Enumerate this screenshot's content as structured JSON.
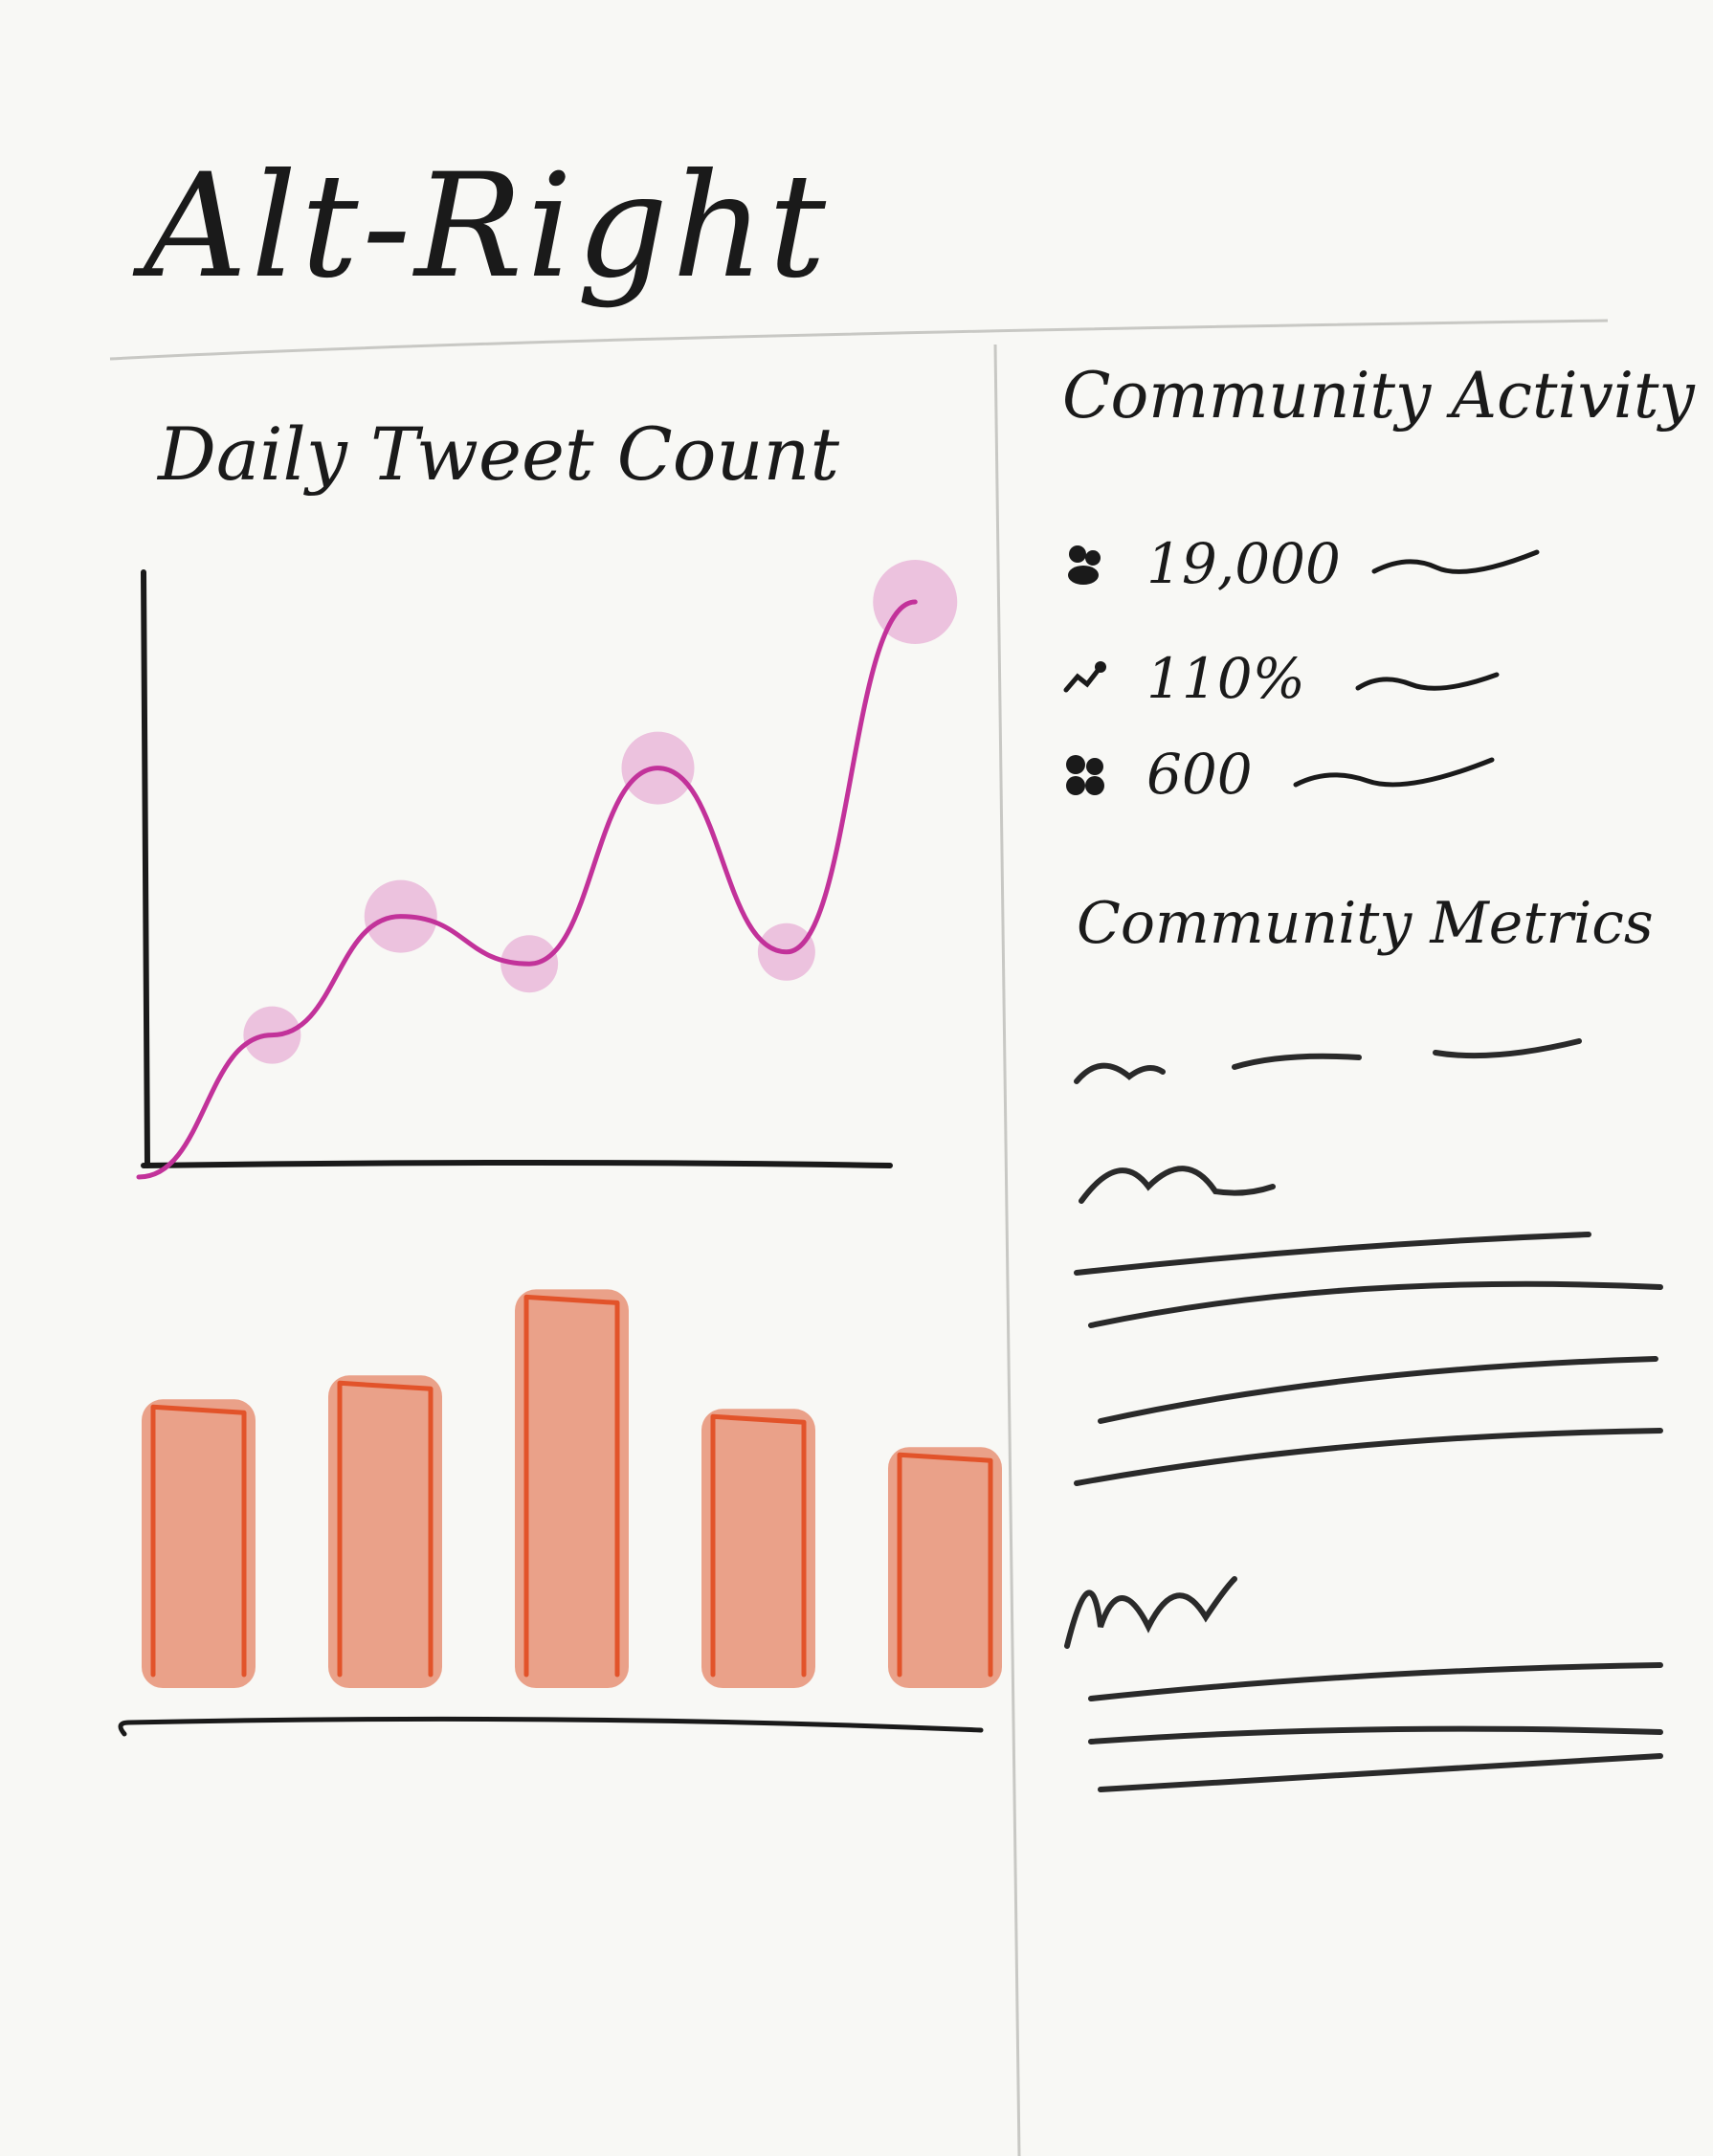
{
  "header": {
    "title": "Alt-Right"
  },
  "left_panel": {
    "heading": "Daily Tweet Count"
  },
  "right_panel": {
    "activity_heading": "Community Activity",
    "stats": [
      {
        "icon": "people-icon",
        "value": "19,000"
      },
      {
        "icon": "trend-icon",
        "value": "110%"
      },
      {
        "icon": "group-icon",
        "value": "600"
      }
    ],
    "metrics_heading": "Community Metrics"
  },
  "colors": {
    "ink": "#1a1a1a",
    "line": "#c2329a",
    "point": "#e59fcf",
    "bar_stroke": "#e2532a",
    "bar_fill": "#e89276"
  },
  "chart_data": [
    {
      "type": "line",
      "x": [
        1,
        2,
        3,
        4,
        5,
        6
      ],
      "y": [
        22,
        42,
        34,
        67,
        36,
        95
      ],
      "ylim": [
        0,
        100
      ],
      "xlim": [
        0,
        6.4
      ]
    },
    {
      "type": "bar",
      "categories": [
        "",
        "",
        "",
        "",
        ""
      ],
      "values": [
        56,
        61,
        79,
        54,
        46
      ],
      "ylim": [
        0,
        100
      ]
    }
  ]
}
